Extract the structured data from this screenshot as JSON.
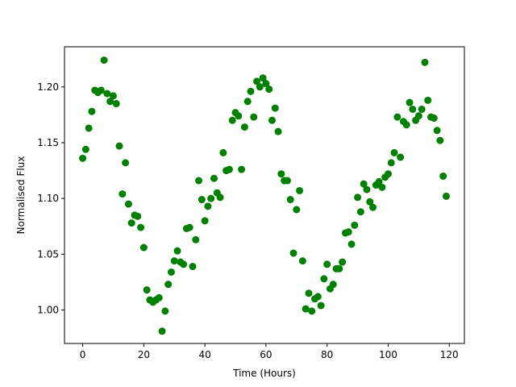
{
  "chart_data": {
    "type": "scatter",
    "xlabel": "Time (Hours)",
    "ylabel": "Normalised Flux",
    "x": [
      0,
      1,
      2,
      3,
      4,
      5,
      6,
      7,
      8,
      9,
      10,
      11,
      12,
      13,
      14,
      15,
      16,
      17,
      18,
      19,
      20,
      21,
      22,
      23,
      24,
      25,
      26,
      27,
      28,
      29,
      30,
      31,
      32,
      33,
      34,
      35,
      36,
      37,
      38,
      39,
      40,
      41,
      42,
      43,
      44,
      45,
      46,
      47,
      48,
      49,
      50,
      51,
      52,
      53,
      54,
      55,
      56,
      57,
      58,
      59,
      60,
      61,
      62,
      63,
      64,
      65,
      66,
      67,
      68,
      69,
      70,
      71,
      72,
      73,
      74,
      75,
      76,
      77,
      78,
      79,
      80,
      81,
      82,
      83,
      84,
      85,
      86,
      87,
      88,
      89,
      90,
      91,
      92,
      93,
      94,
      95,
      96,
      97,
      98,
      99,
      100,
      101,
      102,
      103,
      104,
      105,
      106,
      107,
      108,
      109,
      110,
      111,
      112,
      113,
      114,
      115,
      116,
      117,
      118,
      119
    ],
    "series": [
      {
        "color": "#008000",
        "values": [
          1.136,
          1.144,
          1.163,
          1.178,
          1.197,
          1.195,
          1.197,
          1.224,
          1.194,
          1.187,
          1.192,
          1.185,
          1.147,
          1.104,
          1.132,
          1.095,
          1.078,
          1.085,
          1.084,
          1.074,
          1.056,
          1.018,
          1.009,
          1.007,
          1.009,
          1.011,
          0.981,
          0.999,
          1.023,
          1.034,
          1.044,
          1.053,
          1.043,
          1.041,
          1.073,
          1.074,
          1.039,
          1.063,
          1.116,
          1.099,
          1.08,
          1.093,
          1.1,
          1.118,
          1.105,
          1.101,
          1.141,
          1.125,
          1.126,
          1.17,
          1.177,
          1.174,
          1.126,
          1.164,
          1.187,
          1.196,
          1.173,
          1.205,
          1.2,
          1.208,
          1.203,
          1.198,
          1.17,
          1.181,
          1.16,
          1.122,
          1.116,
          1.116,
          1.099,
          1.051,
          1.09,
          1.107,
          1.044,
          1.001,
          1.015,
          0.999,
          1.01,
          1.012,
          1.004,
          1.028,
          1.041,
          1.019,
          1.023,
          1.037,
          1.037,
          1.043,
          1.069,
          1.07,
          1.059,
          1.076,
          1.101,
          1.088,
          1.113,
          1.108,
          1.097,
          1.092,
          1.112,
          1.115,
          1.11,
          1.119,
          1.122,
          1.132,
          1.141,
          1.173,
          1.137,
          1.169,
          1.166,
          1.186,
          1.18,
          1.17,
          1.174,
          1.18,
          1.222,
          1.188,
          1.173,
          1.172,
          1.161,
          1.152,
          1.12,
          1.102
        ]
      }
    ],
    "xlim": [
      -5.95,
      124.95
    ],
    "xticks": [
      0,
      20,
      40,
      60,
      80,
      100,
      120
    ],
    "ylim": [
      0.97,
      1.236
    ],
    "yticks": [
      {
        "value": 1.0,
        "label": "1.00"
      },
      1.05,
      {
        "value": 1.1,
        "label": "1.10"
      },
      1.15,
      {
        "value": 1.2,
        "label": "1.20"
      }
    ],
    "grid": false
  }
}
